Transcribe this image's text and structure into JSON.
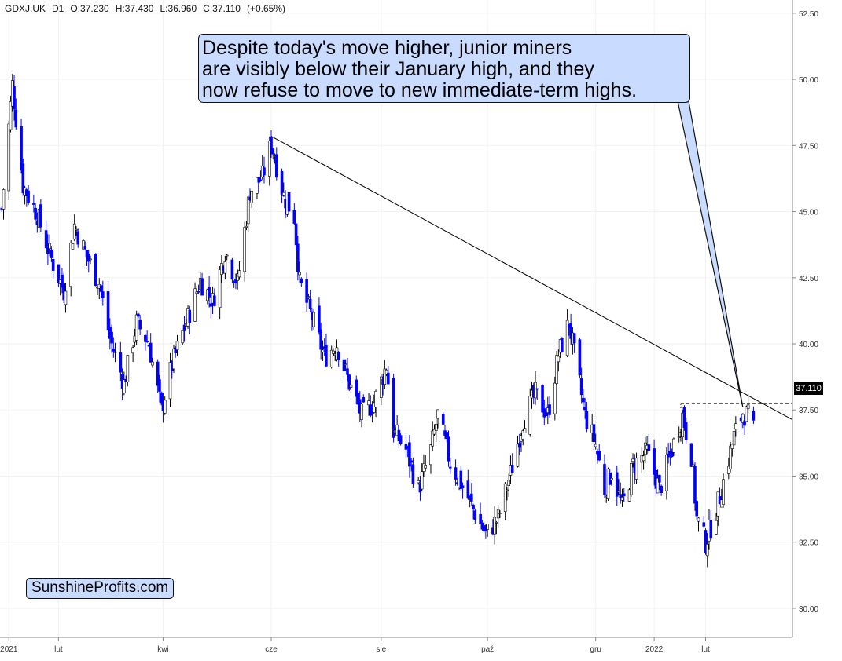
{
  "header": {
    "symbol": "GDXJ.UK",
    "timeframe": "D1",
    "open": "O:37.230",
    "high": "H:37.430",
    "low": "L:36.960",
    "close": "C:37.110",
    "change": "(+0.65%)"
  },
  "callout": {
    "lines": [
      "Despite today's move higher, junior miners",
      "are visibly below their January high, and they",
      "now refuse to move to new immediate-term highs."
    ]
  },
  "brand": "SunshineProfits.com",
  "last_price_label": "37.110",
  "colors": {
    "candle_down": "#0000ff",
    "candle_up_fill": "#ffffff",
    "callout_fill": "#c9dcff",
    "grid": "#f2f2f2",
    "axis_text": "#333333"
  },
  "chart_data": {
    "type": "candlestick",
    "title": "",
    "xlabel": "",
    "ylabel": "",
    "ylim": [
      28.9,
      53.0
    ],
    "y_ticks": [
      "52.50",
      "50.00",
      "47.50",
      "45.00",
      "42.50",
      "40.00",
      "37.50",
      "35.00",
      "32.50",
      "30.00"
    ],
    "x_ticks": [
      {
        "label": "2021",
        "date": "2021-01-04"
      },
      {
        "label": "lut",
        "date": "2021-02-01"
      },
      {
        "label": "kwi",
        "date": "2021-04-01"
      },
      {
        "label": "cze",
        "date": "2021-06-01"
      },
      {
        "label": "sie",
        "date": "2021-08-02"
      },
      {
        "label": "paź",
        "date": "2021-10-01"
      },
      {
        "label": "gru",
        "date": "2021-12-01"
      },
      {
        "label": "2022",
        "date": "2022-01-03"
      },
      {
        "label": "lut",
        "date": "2022-02-01"
      }
    ],
    "xlim": [
      "2020-12-30",
      "2022-03-22"
    ],
    "close_path": [
      {
        "date": "2020-12-31",
        "value": 45.1
      },
      {
        "date": "2021-01-06",
        "value": 49.8
      },
      {
        "date": "2021-01-12",
        "value": 46.0
      },
      {
        "date": "2021-01-20",
        "value": 44.9
      },
      {
        "date": "2021-01-28",
        "value": 43.2
      },
      {
        "date": "2021-02-04",
        "value": 42.0
      },
      {
        "date": "2021-02-10",
        "value": 44.5
      },
      {
        "date": "2021-02-17",
        "value": 43.3
      },
      {
        "date": "2021-02-24",
        "value": 42.3
      },
      {
        "date": "2021-03-02",
        "value": 40.2
      },
      {
        "date": "2021-03-10",
        "value": 38.5
      },
      {
        "date": "2021-03-17",
        "value": 40.8
      },
      {
        "date": "2021-03-24",
        "value": 40.0
      },
      {
        "date": "2021-03-31",
        "value": 37.5
      },
      {
        "date": "2021-04-06",
        "value": 39.2
      },
      {
        "date": "2021-04-14",
        "value": 40.8
      },
      {
        "date": "2021-04-22",
        "value": 42.4
      },
      {
        "date": "2021-04-29",
        "value": 41.6
      },
      {
        "date": "2021-05-06",
        "value": 43.5
      },
      {
        "date": "2021-05-13",
        "value": 42.3
      },
      {
        "date": "2021-05-20",
        "value": 45.8
      },
      {
        "date": "2021-05-27",
        "value": 46.3
      },
      {
        "date": "2021-06-01",
        "value": 47.6
      },
      {
        "date": "2021-06-08",
        "value": 45.6
      },
      {
        "date": "2021-06-14",
        "value": 44.8
      },
      {
        "date": "2021-06-17",
        "value": 42.3
      },
      {
        "date": "2021-06-24",
        "value": 41.0
      },
      {
        "date": "2021-07-01",
        "value": 39.5
      },
      {
        "date": "2021-07-08",
        "value": 40.0
      },
      {
        "date": "2021-07-15",
        "value": 38.5
      },
      {
        "date": "2021-07-22",
        "value": 37.3
      },
      {
        "date": "2021-07-29",
        "value": 37.8
      },
      {
        "date": "2021-08-05",
        "value": 39.2
      },
      {
        "date": "2021-08-09",
        "value": 36.7
      },
      {
        "date": "2021-08-16",
        "value": 36.0
      },
      {
        "date": "2021-08-23",
        "value": 34.5
      },
      {
        "date": "2021-08-30",
        "value": 36.0
      },
      {
        "date": "2021-09-03",
        "value": 37.3
      },
      {
        "date": "2021-09-10",
        "value": 35.5
      },
      {
        "date": "2021-09-17",
        "value": 34.6
      },
      {
        "date": "2021-09-24",
        "value": 33.6
      },
      {
        "date": "2021-09-30",
        "value": 32.8
      },
      {
        "date": "2021-10-07",
        "value": 33.4
      },
      {
        "date": "2021-10-14",
        "value": 35.1
      },
      {
        "date": "2021-10-21",
        "value": 37.1
      },
      {
        "date": "2021-10-28",
        "value": 38.1
      },
      {
        "date": "2021-11-04",
        "value": 37.3
      },
      {
        "date": "2021-11-10",
        "value": 39.6
      },
      {
        "date": "2021-11-16",
        "value": 40.8
      },
      {
        "date": "2021-11-19",
        "value": 39.6
      },
      {
        "date": "2021-11-25",
        "value": 37.3
      },
      {
        "date": "2021-12-01",
        "value": 36.2
      },
      {
        "date": "2021-12-06",
        "value": 34.5
      },
      {
        "date": "2021-12-10",
        "value": 35.2
      },
      {
        "date": "2021-12-16",
        "value": 33.8
      },
      {
        "date": "2021-12-22",
        "value": 35.4
      },
      {
        "date": "2021-12-30",
        "value": 35.9
      },
      {
        "date": "2022-01-06",
        "value": 34.5
      },
      {
        "date": "2022-01-12",
        "value": 35.8
      },
      {
        "date": "2022-01-19",
        "value": 37.3
      },
      {
        "date": "2022-01-24",
        "value": 35.8
      },
      {
        "date": "2022-01-27",
        "value": 33.4
      },
      {
        "date": "2022-02-01",
        "value": 32.5
      },
      {
        "date": "2022-02-07",
        "value": 33.7
      },
      {
        "date": "2022-02-11",
        "value": 34.8
      },
      {
        "date": "2022-02-17",
        "value": 36.5
      },
      {
        "date": "2022-02-22",
        "value": 37.4
      },
      {
        "date": "2022-02-28",
        "value": 37.11
      }
    ],
    "trendline": {
      "from": {
        "date": "2021-06-01",
        "value": 47.85
      },
      "to": {
        "date": "2022-03-22",
        "value": 37.13
      }
    },
    "resistance": {
      "value": 37.75,
      "from": "2022-01-18",
      "to": "2022-03-22",
      "style": "dashed"
    },
    "last_close": 37.11,
    "grid": true
  }
}
